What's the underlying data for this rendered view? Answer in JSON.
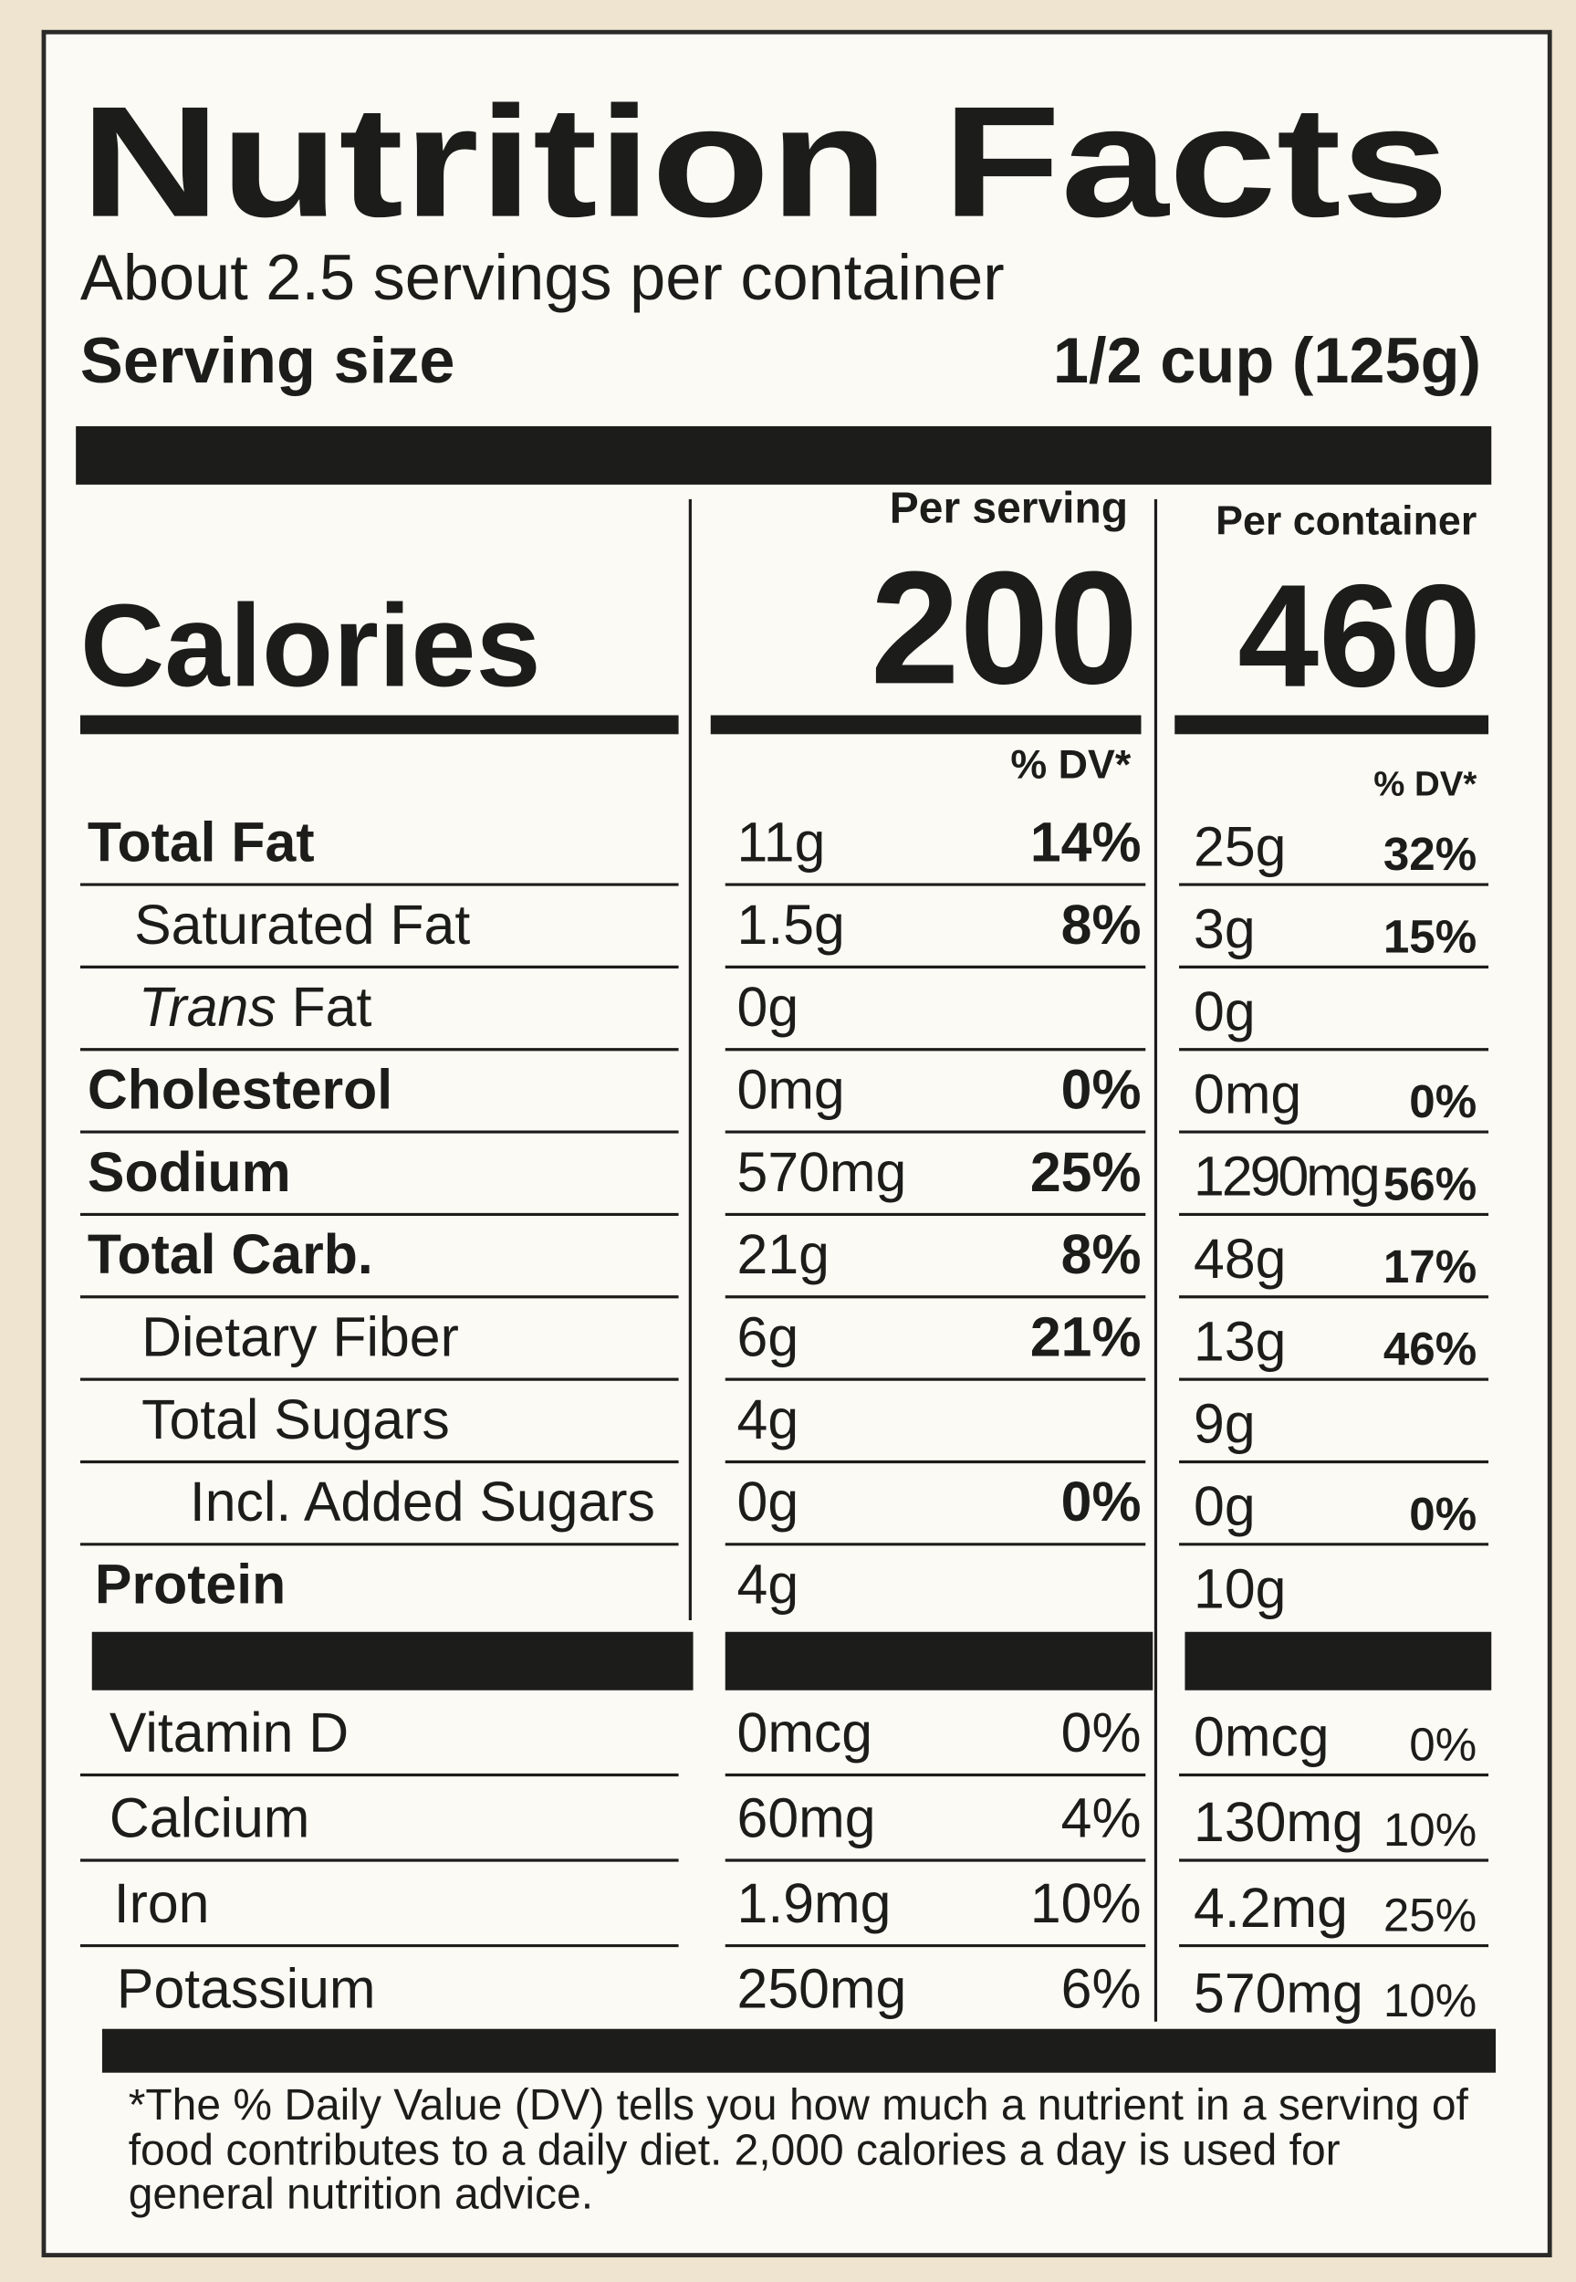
{
  "header": {
    "title": "Nutrition Facts",
    "servings": "About 2.5 servings per container",
    "serving_size_label": "Serving size",
    "serving_size": "1/2 cup (125g)"
  },
  "calories": {
    "label": "Calories",
    "per_serving_label": "Per serving",
    "per_container_label": "Per container",
    "per_serving": "200",
    "per_container": "460",
    "per_serving_dv_header": "% DV*",
    "per_container_dv_header": "% DV*"
  },
  "nutrients": [
    {
      "name": "Total Fat",
      "serving": "11g",
      "serving_dv": "14%",
      "container": "25g",
      "container_dv": "32%"
    },
    {
      "name": "Saturated Fat",
      "serving": "1.5g",
      "serving_dv": "8%",
      "container": "3g",
      "container_dv": "15%"
    },
    {
      "name_italic": "Trans",
      "name": "Fat",
      "serving": "0g",
      "container": "0g"
    },
    {
      "name": "Cholesterol",
      "serving": "0mg",
      "serving_dv": "0%",
      "container": "0mg",
      "container_dv": "0%"
    },
    {
      "name": "Sodium",
      "serving": "570mg",
      "serving_dv": "25%",
      "container": "1290mg",
      "container_dv": "56%"
    },
    {
      "name": "Total Carb.",
      "serving": "21g",
      "serving_dv": "8%",
      "container": "48g",
      "container_dv": "17%"
    },
    {
      "name": "Dietary Fiber",
      "serving": "6g",
      "serving_dv": "21%",
      "container": "13g",
      "container_dv": "46%"
    },
    {
      "name": "Total Sugars",
      "serving": "4g",
      "container": "9g"
    },
    {
      "name": "Incl. Added Sugars",
      "serving": "0g",
      "serving_dv": "0%",
      "container": "0g",
      "container_dv": "0%"
    },
    {
      "name": "Protein",
      "serving": "4g",
      "container": "10g"
    }
  ],
  "vitamins": [
    {
      "name": "Vitamin D",
      "serving": "0mcg",
      "serving_dv": "0%",
      "container": "0mcg",
      "container_dv": "0%"
    },
    {
      "name": "Calcium",
      "serving": "60mg",
      "serving_dv": "4%",
      "container": "130mg",
      "container_dv": "10%"
    },
    {
      "name": "Iron",
      "serving": "1.9mg",
      "serving_dv": "10%",
      "container": "4.2mg",
      "container_dv": "25%"
    },
    {
      "name": "Potassium",
      "serving": "250mg",
      "serving_dv": "6%",
      "container": "570mg",
      "container_dv": "10%"
    }
  ],
  "footnote": [
    "*The % Daily Value (DV) tells you how much a nutrient in a serving of",
    "food contributes to a daily diet. 2,000 calories a day is used for",
    "general nutrition advice."
  ]
}
